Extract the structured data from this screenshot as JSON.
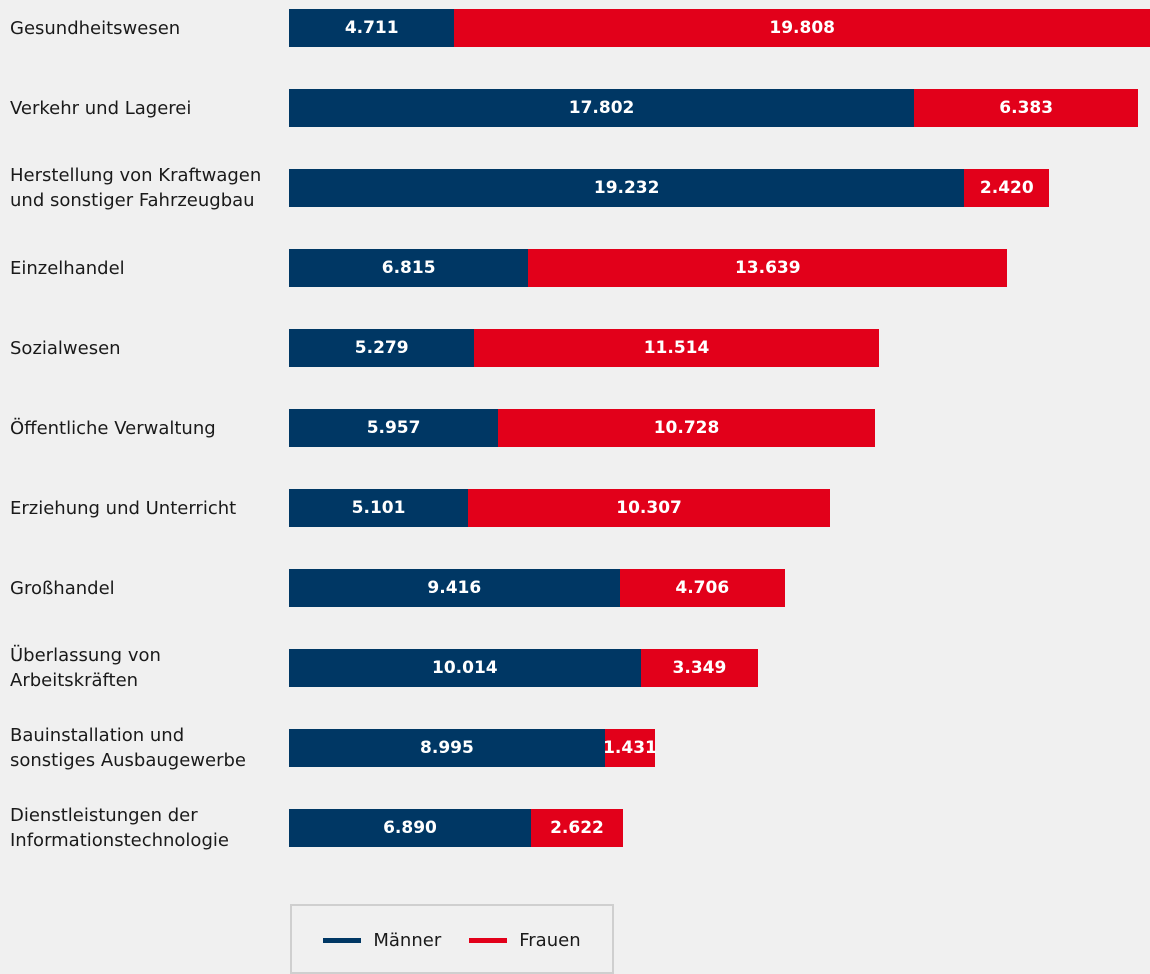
{
  "colors": {
    "maenner": "#003764",
    "frauen": "#e2001a",
    "background": "#f0f0f0"
  },
  "chart_data": {
    "type": "bar",
    "orientation": "horizontal",
    "stacked": true,
    "categories": [
      [
        "Gesundheitswesen"
      ],
      [
        "Verkehr und Lagerei"
      ],
      [
        "Herstellung von Kraftwagen",
        "und sonstiger Fahrzeugbau"
      ],
      [
        "Einzelhandel"
      ],
      [
        "Sozialwesen"
      ],
      [
        "Öffentliche Verwaltung"
      ],
      [
        "Erziehung und Unterricht"
      ],
      [
        "Großhandel"
      ],
      [
        "Überlassung von",
        "Arbeitskräften"
      ],
      [
        "Bauinstallation und",
        "sonstiges Ausbaugewerbe"
      ],
      [
        "Dienstleistungen der",
        "Informationstechnologie"
      ]
    ],
    "series": [
      {
        "name": "Männer",
        "color": "#003764",
        "values": [
          4711,
          17802,
          19232,
          6815,
          5279,
          5957,
          5101,
          9416,
          10014,
          8995,
          6890
        ],
        "labels": [
          "4.711",
          "17.802",
          "19.232",
          "6.815",
          "5.279",
          "5.957",
          "5.101",
          "9.416",
          "10.014",
          "8.995",
          "6.890"
        ]
      },
      {
        "name": "Frauen",
        "color": "#e2001a",
        "values": [
          19808,
          6383,
          2420,
          13639,
          11514,
          10728,
          10307,
          4706,
          3349,
          1431,
          2622
        ],
        "labels": [
          "19.808",
          "6.383",
          "2.420",
          "13.639",
          "11.514",
          "10.728",
          "10.307",
          "4.706",
          "3.349",
          "1.431",
          "2.622"
        ]
      }
    ],
    "xlim": [
      0,
      24519
    ],
    "legend": "bottom-center",
    "grid": false,
    "axes_visible": false
  },
  "legend": {
    "items": [
      {
        "label": "Männer",
        "color": "#003764"
      },
      {
        "label": "Frauen",
        "color": "#e2001a"
      }
    ]
  }
}
